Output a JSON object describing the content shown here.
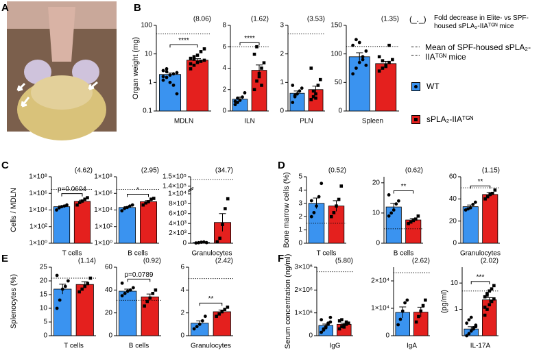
{
  "panel_labels": [
    "A",
    "B",
    "C",
    "D",
    "E",
    "F"
  ],
  "legend": {
    "fold_symbol": "(_._)",
    "fold_text": "Fold decrease in Elite- vs SPF-housed sPLA₂-IIAᵀᴳᴺ mice",
    "mean_text": "Mean of SPF-housed sPLA₂-IIAᵀᴳᴺ mice",
    "items": [
      {
        "name": "WT",
        "color": "#3a93f0"
      },
      {
        "name": "sPLA₂-IIAᵀᴳᴺ",
        "color": "#e4201e"
      }
    ]
  },
  "chart_data": [
    {
      "type": "bar",
      "category": "MDLN",
      "fold": "(8.06)",
      "ylabel": "Organ weight (mg)",
      "log": true,
      "ylim": [
        0.1,
        100
      ],
      "yticks": [
        0.1,
        1,
        10,
        100
      ],
      "ref": 50,
      "bracket": "****",
      "series": [
        {
          "values": [
            1.9
          ],
          "errors": [
            0.25
          ],
          "points": [
            1.2,
            1.5,
            1.8,
            2.0,
            2.2,
            2.6,
            3.0,
            1.0,
            0.8,
            0.4,
            1.6,
            2.4
          ]
        },
        {
          "values": [
            6.0
          ],
          "errors": [
            0.8
          ],
          "points": [
            3,
            4,
            5,
            5.5,
            6,
            7,
            8,
            9,
            12,
            15,
            4.5,
            6.5
          ]
        }
      ]
    },
    {
      "type": "bar",
      "category": "ILN",
      "fold": "(1.62)",
      "ylim": [
        0,
        8
      ],
      "yticks": [
        0,
        2,
        4,
        6,
        8
      ],
      "ref": 6,
      "bracket": "****",
      "series": [
        {
          "values": [
            1.1
          ],
          "errors": [
            0.2
          ],
          "points": [
            0.6,
            0.8,
            1.0,
            1.3,
            1.7,
            0.9,
            1.2
          ]
        },
        {
          "values": [
            3.8
          ],
          "errors": [
            0.5
          ],
          "points": [
            2.0,
            2.8,
            3.5,
            4.0,
            4.5,
            5.3,
            6.0,
            3.2,
            2.4
          ]
        }
      ]
    },
    {
      "type": "bar",
      "category": "PLN",
      "fold": "(3.53)",
      "ylim": [
        0,
        3
      ],
      "yticks": [
        0,
        1,
        2,
        3
      ],
      "ref": 2.7,
      "series": [
        {
          "values": [
            0.62
          ],
          "errors": [
            0.08
          ],
          "points": [
            0.3,
            0.5,
            0.6,
            0.7,
            0.8,
            0.9,
            0.55
          ]
        },
        {
          "values": [
            0.75
          ],
          "errors": [
            0.12
          ],
          "points": [
            0.4,
            0.5,
            0.6,
            0.9,
            1.1,
            1.5,
            0.7,
            0.45
          ]
        }
      ]
    },
    {
      "type": "bar",
      "category": "Spleen",
      "fold": "(1.35)",
      "ylim": [
        0,
        150
      ],
      "yticks": [
        0,
        50,
        100,
        150
      ],
      "ref": 113,
      "series": [
        {
          "values": [
            95
          ],
          "errors": [
            7
          ],
          "points": [
            65,
            75,
            85,
            95,
            105,
            115,
            125,
            120,
            90,
            80
          ]
        },
        {
          "values": [
            83
          ],
          "errors": [
            4
          ],
          "points": [
            70,
            75,
            80,
            85,
            90,
            95,
            88,
            78,
            115
          ]
        }
      ]
    },
    {
      "type": "bar",
      "category": "T cells",
      "fold": "(4.62)",
      "ylabel": "Cells / MDLN",
      "log": true,
      "ylim": [
        1,
        100000000
      ],
      "yticks": [
        {
          "value": 1,
          "label": "1×10⁰"
        },
        {
          "value": 100,
          "label": "1×10²"
        },
        {
          "value": 10000,
          "label": "1×10⁴"
        },
        {
          "value": 1000000,
          "label": "1×10⁶"
        },
        {
          "value": 100000000,
          "label": "1×10⁸"
        }
      ],
      "ref": 3000000,
      "bracket": "p=0.0604",
      "series": [
        {
          "values": [
            25000
          ],
          "errors": [
            6000
          ],
          "points": [
            10000,
            18000,
            25000,
            30000,
            40000
          ]
        },
        {
          "values": [
            110000
          ],
          "errors": [
            40000
          ],
          "points": [
            40000,
            80000,
            120000,
            200000,
            300000
          ]
        }
      ]
    },
    {
      "type": "bar",
      "category": "B cells",
      "fold": "(2.95)",
      "log": true,
      "ylim": [
        1,
        100000000
      ],
      "yticks": [
        {
          "value": 1,
          "label": "1×10⁰"
        },
        {
          "value": 100,
          "label": "1×10²"
        },
        {
          "value": 10000,
          "label": "1×10⁴"
        },
        {
          "value": 1000000,
          "label": "1×10⁶"
        },
        {
          "value": 100000000,
          "label": "1×10⁸"
        }
      ],
      "ref": 3000000,
      "bracket": "*",
      "series": [
        {
          "values": [
            20000
          ],
          "errors": [
            5000
          ],
          "points": [
            8000,
            15000,
            20000,
            30000,
            40000
          ]
        },
        {
          "values": [
            100000
          ],
          "errors": [
            35000
          ],
          "points": [
            40000,
            70000,
            100000,
            200000,
            250000
          ]
        }
      ]
    },
    {
      "type": "bar",
      "category": "Granulocytes",
      "fold": "(34.7)",
      "ylim": [
        0,
        150000
      ],
      "ybreak": [
        10500,
        138000
      ],
      "yticks": [
        0,
        {
          "value": 2000,
          "label": "2×10³"
        },
        {
          "value": 4000,
          "label": "4×10³"
        },
        {
          "value": 6000,
          "label": "6×10³"
        },
        {
          "value": 8000,
          "label": "8×10³"
        },
        {
          "value": 10000,
          "label": "1×10⁴"
        },
        {
          "value": 140000,
          "label": "1.4×10⁵"
        },
        {
          "value": 150000,
          "label": "1.5×10⁵"
        }
      ],
      "ref": 147000,
      "series": [
        {
          "values": [
            150
          ],
          "errors": [
            50
          ],
          "points": [
            50,
            100,
            200,
            250,
            120
          ]
        },
        {
          "values": [
            4200
          ],
          "errors": [
            1800
          ],
          "points": [
            300,
            1000,
            3800,
            7000,
            9000
          ]
        }
      ]
    },
    {
      "type": "bar",
      "category": "T cells",
      "fold": "(0.52)",
      "ylabel": "Bone marrow cells (%)",
      "ylim": [
        0,
        5
      ],
      "yticks": [
        0,
        1,
        2,
        3,
        4,
        5
      ],
      "ref": 1.5,
      "series": [
        {
          "values": [
            3.0
          ],
          "errors": [
            0.4
          ],
          "points": [
            2.0,
            2.3,
            2.8,
            3.5,
            4.5,
            3.2
          ]
        },
        {
          "values": [
            2.8
          ],
          "errors": [
            0.4
          ],
          "points": [
            2.0,
            2.3,
            2.8,
            3.3,
            4.3
          ]
        }
      ]
    },
    {
      "type": "bar",
      "category": "B cells",
      "fold": "(0.62)",
      "ylim": [
        0,
        22
      ],
      "yticks": [
        0,
        10,
        20
      ],
      "ref": 4.8,
      "bracket": "**",
      "series": [
        {
          "values": [
            12
          ],
          "errors": [
            1.2
          ],
          "points": [
            9,
            10,
            11,
            13,
            14,
            16
          ]
        },
        {
          "values": [
            7.7
          ],
          "errors": [
            0.5
          ],
          "points": [
            6.5,
            7,
            7.5,
            8,
            9
          ]
        }
      ]
    },
    {
      "type": "bar",
      "category": "Granulocytes",
      "fold": "(1.15)",
      "ylim": [
        0,
        60
      ],
      "yticks": [
        0,
        20,
        40,
        60
      ],
      "ref": 50,
      "bracket": "**",
      "series": [
        {
          "values": [
            33
          ],
          "errors": [
            1.5
          ],
          "points": [
            30,
            31,
            32,
            35,
            37
          ]
        },
        {
          "values": [
            44
          ],
          "errors": [
            1.8
          ],
          "points": [
            40,
            42,
            44,
            45,
            48
          ]
        }
      ]
    },
    {
      "type": "bar",
      "category": "T cells",
      "fold": "(1.14)",
      "ylabel": "Splenocytes (%)",
      "ylim": [
        0,
        25
      ],
      "yticks": [
        0,
        5,
        10,
        15,
        20,
        25
      ],
      "ref": 21,
      "series": [
        {
          "values": [
            17
          ],
          "errors": [
            1.8
          ],
          "points": [
            10,
            13,
            17,
            18,
            20,
            22
          ]
        },
        {
          "values": [
            18.7
          ],
          "errors": [
            1
          ],
          "points": [
            16,
            17,
            18,
            19,
            21
          ]
        }
      ]
    },
    {
      "type": "bar",
      "category": "B cells",
      "fold": "(0.92)",
      "ylim": [
        0,
        60
      ],
      "yticks": [
        0,
        20,
        40,
        60
      ],
      "ref": 31,
      "bracket": "p=0.0789",
      "series": [
        {
          "values": [
            39
          ],
          "errors": [
            1.8
          ],
          "points": [
            35,
            37,
            39,
            40,
            42,
            46
          ]
        },
        {
          "values": [
            34
          ],
          "errors": [
            2.5
          ],
          "points": [
            26,
            30,
            33,
            37,
            40
          ]
        }
      ]
    },
    {
      "type": "bar",
      "category": "Granulocytes",
      "fold": "(2.42)",
      "ylim": [
        0,
        6
      ],
      "yticks": [
        0,
        2,
        4,
        6
      ],
      "ref": 5,
      "bracket": "**",
      "series": [
        {
          "values": [
            1.1
          ],
          "errors": [
            0.2
          ],
          "points": [
            0.6,
            0.8,
            1.0,
            1.3,
            1.7
          ]
        },
        {
          "values": [
            2.1
          ],
          "errors": [
            0.15
          ],
          "points": [
            1.7,
            1.9,
            2.1,
            2.3,
            2.5
          ]
        }
      ]
    },
    {
      "type": "bar",
      "category": "IgG",
      "fold": "(5.80)",
      "ylabel": "Serum concentration (ng/ml)",
      "ylim": [
        0,
        3000000
      ],
      "yticks": [
        0,
        {
          "value": 1000000,
          "label": "1×10⁶"
        },
        {
          "value": 2000000,
          "label": "2×10⁶"
        },
        {
          "value": 3000000,
          "label": "3×10⁶"
        }
      ],
      "ref": 2800000,
      "series": [
        {
          "values": [
            450000
          ],
          "errors": [
            60000
          ],
          "points": [
            150000,
            300000,
            400000,
            500000,
            600000,
            700000,
            250000,
            350000,
            550000,
            800000
          ]
        },
        {
          "values": [
            500000
          ],
          "errors": [
            50000
          ],
          "points": [
            300000,
            400000,
            450000,
            500000,
            550000,
            650000,
            700000,
            380000,
            600000
          ]
        }
      ]
    },
    {
      "type": "bar",
      "category": "IgA",
      "fold": "(2.62)",
      "ylim": [
        0,
        25000
      ],
      "yticks": [
        0,
        {
          "value": 10000,
          "label": "1×10⁴"
        },
        {
          "value": 20000,
          "label": "2×10⁴"
        }
      ],
      "ref": 23000,
      "series": [
        {
          "values": [
            8500
          ],
          "errors": [
            2000
          ],
          "points": [
            4000,
            6000,
            9000,
            12000,
            13000
          ]
        },
        {
          "values": [
            8600
          ],
          "errors": [
            1800
          ],
          "points": [
            5000,
            7000,
            9000,
            11000,
            13000
          ]
        }
      ]
    },
    {
      "type": "bar",
      "category": "IL-17A",
      "fold": "(2.02)",
      "ylabel": "(pg/ml)",
      "log": true,
      "ylim": [
        0.1,
        40
      ],
      "yticks": [
        1,
        10
      ],
      "ref": 5,
      "bracket": "***",
      "series": [
        {
          "values": [
            0.18
          ],
          "errors": [
            0.04
          ],
          "points": [
            0.1,
            0.12,
            0.15,
            0.2,
            0.25,
            0.3,
            0.4,
            0.5,
            0.18,
            0.22
          ]
        },
        {
          "values": [
            2.3
          ],
          "errors": [
            0.5
          ],
          "points": [
            0.6,
            1,
            1.5,
            2,
            2.5,
            3,
            4,
            5,
            6,
            8,
            1.2,
            3.5
          ]
        }
      ]
    }
  ]
}
